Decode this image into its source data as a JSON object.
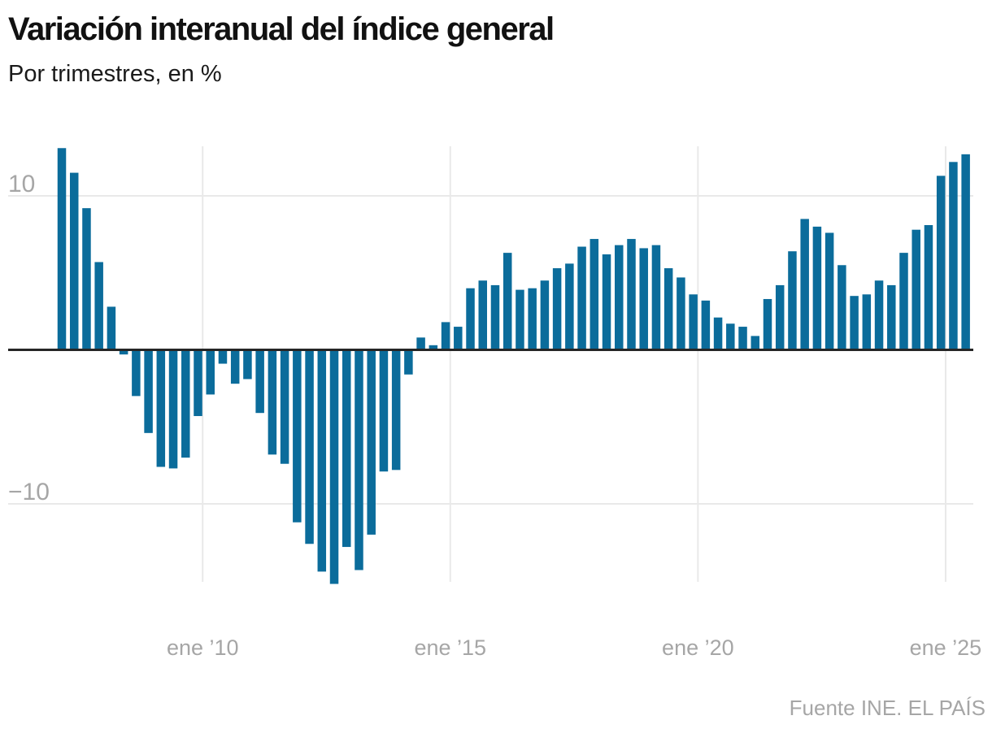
{
  "header": {
    "title": "Variación interanual del índice general",
    "subtitle": "Por trimestres, en %"
  },
  "footer": {
    "source": "Fuente INE. EL PAÍS"
  },
  "colors": {
    "bar": "#0B6C9B",
    "zero_line": "#262626",
    "grid": "#E9E9E9",
    "tick_label": "#A6A6A6",
    "title": "#111111",
    "subtitle": "#1A1A1A",
    "source": "#A6A6A6",
    "background": "#FFFFFF"
  },
  "chart_data": {
    "type": "bar",
    "title": "Variación interanual del índice general",
    "subtitle": "Por trimestres, en %",
    "unit": "%",
    "x_unit": "trimestre",
    "grid": true,
    "legend": false,
    "ylim": [
      -15.2,
      13.2
    ],
    "y_ticks": [
      {
        "value": 10,
        "label": "10"
      },
      {
        "value": -10,
        "label": "−10"
      }
    ],
    "x_ticks": [
      {
        "index": 12,
        "label": "ene ’10"
      },
      {
        "index": 32,
        "label": "ene ’15"
      },
      {
        "index": 52,
        "label": "ene ’20"
      },
      {
        "index": 72,
        "label": "ene ’25"
      }
    ],
    "categories": [
      "2007-T1",
      "2007-T2",
      "2007-T3",
      "2007-T4",
      "2008-T1",
      "2008-T2",
      "2008-T3",
      "2008-T4",
      "2009-T1",
      "2009-T2",
      "2009-T3",
      "2009-T4",
      "2010-T1",
      "2010-T2",
      "2010-T3",
      "2010-T4",
      "2011-T1",
      "2011-T2",
      "2011-T3",
      "2011-T4",
      "2012-T1",
      "2012-T2",
      "2012-T3",
      "2012-T4",
      "2013-T1",
      "2013-T2",
      "2013-T3",
      "2013-T4",
      "2014-T1",
      "2014-T2",
      "2014-T3",
      "2014-T4",
      "2015-T1",
      "2015-T2",
      "2015-T3",
      "2015-T4",
      "2016-T1",
      "2016-T2",
      "2016-T3",
      "2016-T4",
      "2017-T1",
      "2017-T2",
      "2017-T3",
      "2017-T4",
      "2018-T1",
      "2018-T2",
      "2018-T3",
      "2018-T4",
      "2019-T1",
      "2019-T2",
      "2019-T3",
      "2019-T4",
      "2020-T1",
      "2020-T2",
      "2020-T3",
      "2020-T4",
      "2021-T1",
      "2021-T2",
      "2021-T3",
      "2021-T4",
      "2022-T1",
      "2022-T2",
      "2022-T3",
      "2022-T4",
      "2023-T1",
      "2023-T2",
      "2023-T3",
      "2023-T4",
      "2024-T1",
      "2024-T2",
      "2024-T3",
      "2024-T4",
      "2025-T1",
      "2025-T2"
    ],
    "values": [
      13.1,
      11.5,
      9.2,
      5.7,
      2.8,
      -0.3,
      -3.0,
      -5.4,
      -7.6,
      -7.7,
      -7.0,
      -4.3,
      -2.9,
      -0.9,
      -2.2,
      -1.9,
      -4.1,
      -6.8,
      -7.4,
      -11.2,
      -12.6,
      -14.4,
      -15.2,
      -12.8,
      -14.3,
      -12.0,
      -7.9,
      -7.8,
      -1.6,
      0.8,
      0.3,
      1.8,
      1.5,
      4.0,
      4.5,
      4.2,
      6.3,
      3.9,
      4.0,
      4.5,
      5.3,
      5.6,
      6.7,
      7.2,
      6.2,
      6.8,
      7.2,
      6.6,
      6.8,
      5.3,
      4.7,
      3.6,
      3.2,
      2.1,
      1.7,
      1.5,
      0.9,
      3.3,
      4.2,
      6.4,
      8.5,
      8.0,
      7.6,
      5.5,
      3.5,
      3.6,
      4.5,
      4.2,
      6.3,
      7.8,
      8.1,
      11.3,
      12.2,
      12.7
    ]
  }
}
